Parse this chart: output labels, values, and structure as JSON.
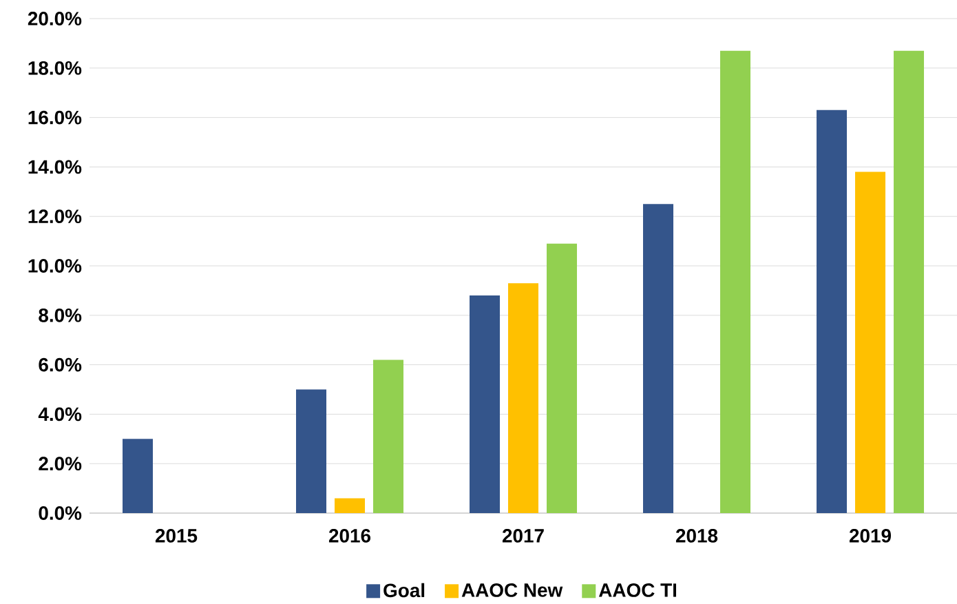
{
  "chart_data": {
    "type": "bar",
    "categories": [
      "2015",
      "2016",
      "2017",
      "2018",
      "2019"
    ],
    "series": [
      {
        "name": "Goal",
        "color": "#34558b",
        "values": [
          3.0,
          5.0,
          8.8,
          12.5,
          16.3
        ]
      },
      {
        "name": "AAOC New",
        "color": "#ffc000",
        "values": [
          null,
          0.6,
          9.3,
          null,
          13.8
        ]
      },
      {
        "name": "AAOC TI",
        "color": "#92d050",
        "values": [
          null,
          6.2,
          10.9,
          18.7,
          18.7
        ]
      }
    ],
    "ylim": [
      0,
      20
    ],
    "yticks": [
      {
        "value": 0,
        "label": "0.0%"
      },
      {
        "value": 2,
        "label": "2.0%"
      },
      {
        "value": 4,
        "label": "4.0%"
      },
      {
        "value": 6,
        "label": "6.0%"
      },
      {
        "value": 8,
        "label": "8.0%"
      },
      {
        "value": 10,
        "label": "10.0%"
      },
      {
        "value": 12,
        "label": "12.0%"
      },
      {
        "value": 14,
        "label": "14.0%"
      },
      {
        "value": 16,
        "label": "16.0%"
      },
      {
        "value": 18,
        "label": "18.0%"
      },
      {
        "value": 20,
        "label": "20.0%"
      }
    ],
    "grid": "y",
    "legend": "bottom"
  }
}
